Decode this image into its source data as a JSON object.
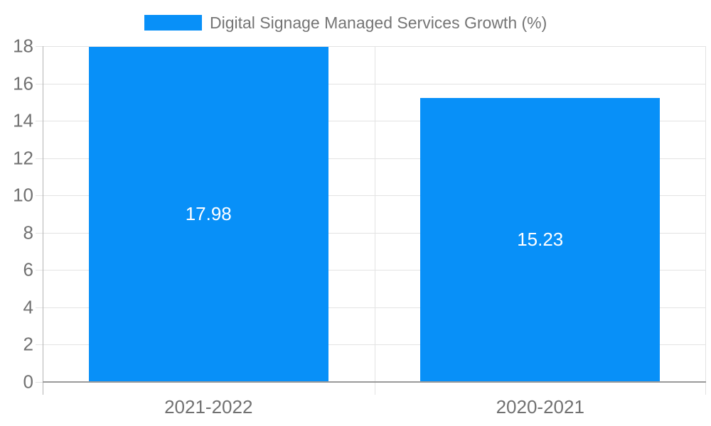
{
  "legend": {
    "label": "Digital Signage Managed Services Growth (%)"
  },
  "chart_data": {
    "type": "bar",
    "categories": [
      "2021-2022",
      "2020-2021"
    ],
    "series": [
      {
        "name": "Digital Signage Managed Services Growth (%)",
        "values": [
          17.98,
          15.23
        ]
      }
    ],
    "value_labels": [
      "17.98",
      "15.23"
    ],
    "title": "",
    "xlabel": "",
    "ylabel": "",
    "ylim": [
      0,
      18
    ],
    "yticks": [
      0,
      2,
      4,
      6,
      8,
      10,
      12,
      14,
      16,
      18
    ],
    "grid": true,
    "legend_position": "top-center",
    "colors": {
      "bar": "#0890f8",
      "gridline": "#e3e3e3",
      "baseline": "#9a9a9a",
      "axis_line": "#b3b3b3",
      "tick_label": "#717171",
      "legend_label": "#757575",
      "data_label": "#ffffff"
    }
  }
}
